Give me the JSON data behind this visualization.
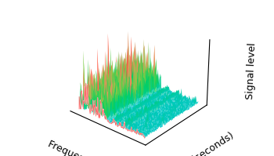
{
  "title": "",
  "xlabel": "Frequency (MHz)",
  "ylabel": "Time (seconds)",
  "zlabel": "Signal level",
  "xlabel_fontsize": 9,
  "ylabel_fontsize": 9,
  "zlabel_fontsize": 9,
  "background_color": "#ffffff",
  "freq_bins": 120,
  "time_bins": 80,
  "elev": 28,
  "azim": -50,
  "noise_floor": 0.05,
  "signal_scale": 1.0
}
